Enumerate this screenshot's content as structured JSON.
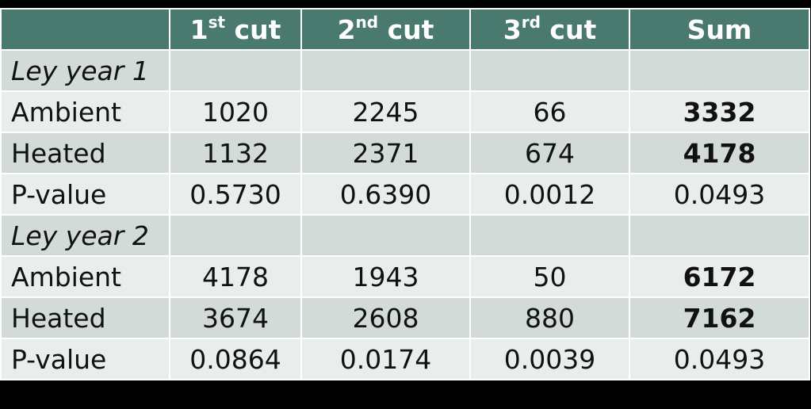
{
  "header": {
    "corner": "",
    "columns": [
      {
        "main": "1",
        "sup": "st",
        "tail": " cut"
      },
      {
        "main": "2",
        "sup": "nd",
        "tail": " cut"
      },
      {
        "main": "3",
        "sup": "rd",
        "tail": " cut"
      },
      {
        "main": "Sum",
        "sup": "",
        "tail": ""
      }
    ]
  },
  "rows": [
    {
      "label": "Ley year 1",
      "cells": [
        "",
        "",
        "",
        ""
      ]
    },
    {
      "label": "Ambient",
      "cells": [
        "1020",
        "2245",
        "66",
        "3332"
      ]
    },
    {
      "label": "Heated",
      "cells": [
        "1132",
        "2371",
        "674",
        "4178"
      ]
    },
    {
      "label": "P-value",
      "cells": [
        "0.5730",
        "0.6390",
        "0.0012",
        "0.0493"
      ]
    },
    {
      "label": "Ley year 2",
      "cells": [
        "",
        "",
        "",
        ""
      ]
    },
    {
      "label": "Ambient",
      "cells": [
        "4178",
        "1943",
        "50",
        "6172"
      ]
    },
    {
      "label": "Heated",
      "cells": [
        "3674",
        "2608",
        "880",
        "7162"
      ]
    },
    {
      "label": "P-value",
      "cells": [
        "0.0864",
        "0.0174",
        "0.0039",
        "0.0493"
      ]
    }
  ],
  "colors": {
    "header_bg": "#4a7a6f",
    "row_dark": "#d3dbd9",
    "row_light": "#e9edec",
    "background": "#000000"
  }
}
